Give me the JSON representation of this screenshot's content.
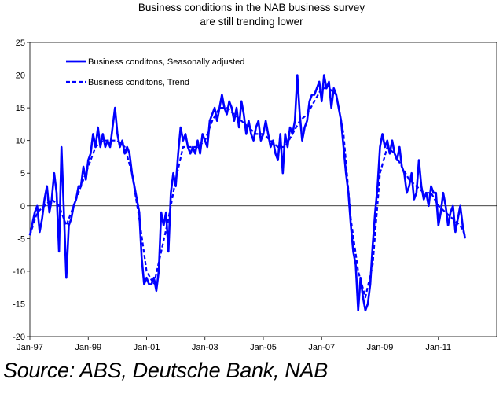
{
  "title_line1": "Business conditions in the NAB business survey",
  "title_line2": "are still trending lower",
  "source": "Source: ABS, Deutsche Bank, NAB",
  "chart_data": {
    "type": "line",
    "x_tick_labels": [
      "Jan-97",
      "Jan-99",
      "Jan-01",
      "Jan-03",
      "Jan-05",
      "Jan-07",
      "Jan-09",
      "Jan-11"
    ],
    "y_ticks": [
      25,
      20,
      15,
      10,
      5,
      0,
      -5,
      -10,
      -15,
      -20
    ],
    "ylim": [
      -20,
      25
    ],
    "x_range": [
      "1997-01",
      "2012-12"
    ],
    "grid": false,
    "zero_line": true,
    "legend_position": "top-left",
    "line_color": "#0000ff",
    "series": [
      {
        "name": "Business conditons, Seasonally adjusted",
        "style": "solid",
        "points": [
          [
            "1997-01",
            -4.5
          ],
          [
            "1997-03",
            -1
          ],
          [
            "1997-04",
            0
          ],
          [
            "1997-05",
            -4
          ],
          [
            "1997-06",
            -2
          ],
          [
            "1997-07",
            1
          ],
          [
            "1997-08",
            3
          ],
          [
            "1997-09",
            -1
          ],
          [
            "1997-10",
            1
          ],
          [
            "1997-11",
            5
          ],
          [
            "1997-12",
            2
          ],
          [
            "1998-01",
            -7
          ],
          [
            "1998-02",
            9
          ],
          [
            "1998-03",
            -1
          ],
          [
            "1998-04",
            -11
          ],
          [
            "1998-05",
            -3
          ],
          [
            "1998-06",
            -2
          ],
          [
            "1998-07",
            0
          ],
          [
            "1998-08",
            1
          ],
          [
            "1998-09",
            3
          ],
          [
            "1998-10",
            3
          ],
          [
            "1998-11",
            6
          ],
          [
            "1998-12",
            4
          ],
          [
            "1999-01",
            7
          ],
          [
            "1999-02",
            8
          ],
          [
            "1999-03",
            11
          ],
          [
            "1999-04",
            9
          ],
          [
            "1999-05",
            12
          ],
          [
            "1999-06",
            9
          ],
          [
            "1999-07",
            11
          ],
          [
            "1999-08",
            9
          ],
          [
            "1999-09",
            10
          ],
          [
            "1999-10",
            9
          ],
          [
            "1999-11",
            12
          ],
          [
            "1999-12",
            15
          ],
          [
            "2000-01",
            11
          ],
          [
            "2000-02",
            9
          ],
          [
            "2000-03",
            10
          ],
          [
            "2000-04",
            8
          ],
          [
            "2000-05",
            9
          ],
          [
            "2000-06",
            8
          ],
          [
            "2000-07",
            5
          ],
          [
            "2000-08",
            3
          ],
          [
            "2000-09",
            1
          ],
          [
            "2000-10",
            -1
          ],
          [
            "2000-11",
            -8
          ],
          [
            "2000-12",
            -12
          ],
          [
            "2001-01",
            -11
          ],
          [
            "2001-02",
            -12
          ],
          [
            "2001-03",
            -12
          ],
          [
            "2001-04",
            -11
          ],
          [
            "2001-05",
            -13
          ],
          [
            "2001-06",
            -10
          ],
          [
            "2001-07",
            -1
          ],
          [
            "2001-08",
            -3
          ],
          [
            "2001-09",
            -1
          ],
          [
            "2001-10",
            -7
          ],
          [
            "2001-11",
            2
          ],
          [
            "2001-12",
            5
          ],
          [
            "2002-01",
            3
          ],
          [
            "2002-02",
            8
          ],
          [
            "2002-03",
            12
          ],
          [
            "2002-04",
            10
          ],
          [
            "2002-05",
            11
          ],
          [
            "2002-06",
            9
          ],
          [
            "2002-07",
            8
          ],
          [
            "2002-08",
            9
          ],
          [
            "2002-09",
            8
          ],
          [
            "2002-10",
            10
          ],
          [
            "2002-11",
            8
          ],
          [
            "2002-12",
            11
          ],
          [
            "2003-01",
            10
          ],
          [
            "2003-02",
            9
          ],
          [
            "2003-03",
            13
          ],
          [
            "2003-04",
            14
          ],
          [
            "2003-05",
            15
          ],
          [
            "2003-06",
            13
          ],
          [
            "2003-07",
            15
          ],
          [
            "2003-08",
            17
          ],
          [
            "2003-09",
            15
          ],
          [
            "2003-10",
            14
          ],
          [
            "2003-11",
            16
          ],
          [
            "2003-12",
            15
          ],
          [
            "2004-01",
            13
          ],
          [
            "2004-02",
            15
          ],
          [
            "2004-03",
            12
          ],
          [
            "2004-04",
            16
          ],
          [
            "2004-05",
            14
          ],
          [
            "2004-06",
            11
          ],
          [
            "2004-07",
            13
          ],
          [
            "2004-08",
            11
          ],
          [
            "2004-09",
            10
          ],
          [
            "2004-10",
            12
          ],
          [
            "2004-11",
            13
          ],
          [
            "2004-12",
            10
          ],
          [
            "2005-01",
            11
          ],
          [
            "2005-02",
            13
          ],
          [
            "2005-03",
            11
          ],
          [
            "2005-04",
            9
          ],
          [
            "2005-05",
            10
          ],
          [
            "2005-06",
            8
          ],
          [
            "2005-07",
            7
          ],
          [
            "2005-08",
            11
          ],
          [
            "2005-09",
            5
          ],
          [
            "2005-10",
            11
          ],
          [
            "2005-11",
            9
          ],
          [
            "2005-12",
            12
          ],
          [
            "2006-01",
            11
          ],
          [
            "2006-02",
            13
          ],
          [
            "2006-03",
            20
          ],
          [
            "2006-04",
            14
          ],
          [
            "2006-05",
            10
          ],
          [
            "2006-06",
            12
          ],
          [
            "2006-07",
            13
          ],
          [
            "2006-08",
            16
          ],
          [
            "2006-09",
            17
          ],
          [
            "2006-10",
            17
          ],
          [
            "2006-11",
            18
          ],
          [
            "2006-12",
            19
          ],
          [
            "2007-01",
            16
          ],
          [
            "2007-02",
            20
          ],
          [
            "2007-03",
            18
          ],
          [
            "2007-04",
            19
          ],
          [
            "2007-05",
            15
          ],
          [
            "2007-06",
            18
          ],
          [
            "2007-07",
            17
          ],
          [
            "2007-08",
            15
          ],
          [
            "2007-09",
            13
          ],
          [
            "2007-10",
            9
          ],
          [
            "2007-11",
            5
          ],
          [
            "2007-12",
            2
          ],
          [
            "2008-01",
            -3
          ],
          [
            "2008-02",
            -7
          ],
          [
            "2008-03",
            -9
          ],
          [
            "2008-04",
            -16
          ],
          [
            "2008-05",
            -11
          ],
          [
            "2008-06",
            -14
          ],
          [
            "2008-07",
            -16
          ],
          [
            "2008-08",
            -15
          ],
          [
            "2008-09",
            -12
          ],
          [
            "2008-10",
            -6
          ],
          [
            "2008-11",
            -1
          ],
          [
            "2008-12",
            3
          ],
          [
            "2009-01",
            9
          ],
          [
            "2009-02",
            11
          ],
          [
            "2009-03",
            9
          ],
          [
            "2009-04",
            10
          ],
          [
            "2009-05",
            8
          ],
          [
            "2009-06",
            10
          ],
          [
            "2009-07",
            8
          ],
          [
            "2009-08",
            7
          ],
          [
            "2009-09",
            9
          ],
          [
            "2009-10",
            6
          ],
          [
            "2009-11",
            5
          ],
          [
            "2009-12",
            2
          ],
          [
            "2010-01",
            3
          ],
          [
            "2010-02",
            5
          ],
          [
            "2010-03",
            1
          ],
          [
            "2010-04",
            2
          ],
          [
            "2010-05",
            7
          ],
          [
            "2010-06",
            3
          ],
          [
            "2010-07",
            1
          ],
          [
            "2010-08",
            2
          ],
          [
            "2010-09",
            0
          ],
          [
            "2010-10",
            3
          ],
          [
            "2010-11",
            2
          ],
          [
            "2010-12",
            2
          ],
          [
            "2011-01",
            -3
          ],
          [
            "2011-02",
            -1
          ],
          [
            "2011-03",
            2
          ],
          [
            "2011-04",
            0
          ],
          [
            "2011-05",
            -3
          ],
          [
            "2011-06",
            -1
          ],
          [
            "2011-07",
            0
          ],
          [
            "2011-08",
            -4
          ],
          [
            "2011-09",
            -2
          ],
          [
            "2011-10",
            0
          ],
          [
            "2011-11",
            -3
          ],
          [
            "2011-12",
            -5
          ]
        ]
      },
      {
        "name": "Business conditons, Trend",
        "style": "dashed",
        "points": [
          [
            "1997-01",
            -4.5
          ],
          [
            "1997-04",
            -1
          ],
          [
            "1997-07",
            0
          ],
          [
            "1997-10",
            1
          ],
          [
            "1998-01",
            0
          ],
          [
            "1998-04",
            -3
          ],
          [
            "1998-07",
            0
          ],
          [
            "1998-10",
            3
          ],
          [
            "1999-01",
            6
          ],
          [
            "1999-04",
            9
          ],
          [
            "1999-07",
            10
          ],
          [
            "1999-10",
            10
          ],
          [
            "2000-01",
            10
          ],
          [
            "2000-04",
            9
          ],
          [
            "2000-07",
            5
          ],
          [
            "2000-10",
            -2
          ],
          [
            "2001-01",
            -10
          ],
          [
            "2001-04",
            -12
          ],
          [
            "2001-07",
            -7
          ],
          [
            "2001-10",
            -2
          ],
          [
            "2002-01",
            4
          ],
          [
            "2002-04",
            9
          ],
          [
            "2002-07",
            9
          ],
          [
            "2002-10",
            9
          ],
          [
            "2003-01",
            10
          ],
          [
            "2003-04",
            13
          ],
          [
            "2003-07",
            15
          ],
          [
            "2003-10",
            15
          ],
          [
            "2004-01",
            14
          ],
          [
            "2004-04",
            13
          ],
          [
            "2004-07",
            12
          ],
          [
            "2004-10",
            11
          ],
          [
            "2005-01",
            11
          ],
          [
            "2005-04",
            10
          ],
          [
            "2005-07",
            9
          ],
          [
            "2005-10",
            9
          ],
          [
            "2006-01",
            11
          ],
          [
            "2006-04",
            13
          ],
          [
            "2006-07",
            14
          ],
          [
            "2006-10",
            16
          ],
          [
            "2007-01",
            18
          ],
          [
            "2007-04",
            18
          ],
          [
            "2007-07",
            17
          ],
          [
            "2007-10",
            11
          ],
          [
            "2008-01",
            -2
          ],
          [
            "2008-04",
            -10
          ],
          [
            "2008-07",
            -14
          ],
          [
            "2008-10",
            -9
          ],
          [
            "2009-01",
            5
          ],
          [
            "2009-04",
            9
          ],
          [
            "2009-07",
            8
          ],
          [
            "2009-10",
            6
          ],
          [
            "2010-01",
            4
          ],
          [
            "2010-04",
            3
          ],
          [
            "2010-07",
            2
          ],
          [
            "2010-10",
            2
          ],
          [
            "2011-01",
            0
          ],
          [
            "2011-04",
            -1
          ],
          [
            "2011-07",
            -2
          ],
          [
            "2011-10",
            -3
          ],
          [
            "2011-12",
            -4.5
          ]
        ]
      }
    ]
  }
}
